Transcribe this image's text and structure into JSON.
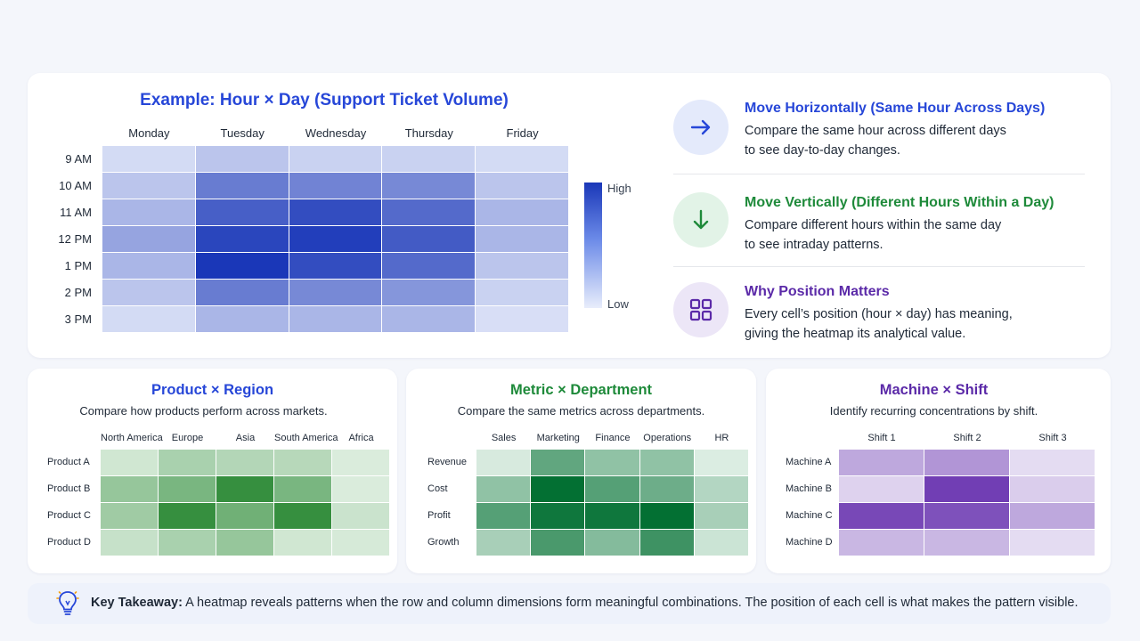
{
  "colors": {
    "blue_accent": "#2747d8",
    "green_accent": "#1e8a3a",
    "purple_accent": "#5b2aa8",
    "blue_high": "#1a37b8",
    "blue_low": "#e8edfb"
  },
  "main_panel": {
    "title": "Example: Hour × Day (Support Ticket Volume)",
    "legend_high": "High",
    "legend_low": "Low"
  },
  "info": [
    {
      "icon": "arrow-right-icon",
      "heading": "Move Horizontally (Same Hour Across Days)",
      "line1": "Compare the same hour across different days",
      "line2": "to see day-to-day changes.",
      "color": "#2747d8",
      "bg": "#e4eafb"
    },
    {
      "icon": "arrow-down-icon",
      "heading": "Move Vertically (Different Hours Within a Day)",
      "line1": "Compare different hours within the same day",
      "line2": "to see intraday patterns.",
      "color": "#1e8a3a",
      "bg": "#e2f3e7"
    },
    {
      "icon": "grid-icon",
      "heading": "Why Position Matters",
      "line1": "Every cell’s position (hour × day) has meaning,",
      "line2": "giving the heatmap its analytical value.",
      "color": "#5b2aa8",
      "bg": "#ece6f7"
    }
  ],
  "small_panels": [
    {
      "title": "Product × Region",
      "subtitle": "Compare how products perform across markets."
    },
    {
      "title": "Metric × Department",
      "subtitle": "Compare the same metrics across departments."
    },
    {
      "title": "Machine × Shift",
      "subtitle": "Identify recurring concentrations by shift."
    }
  ],
  "takeaway": {
    "label": "Key Takeaway:",
    "text": " A heatmap reveals patterns when the row and column dimensions form meaningful combinations. The position of each cell is what makes the pattern visible."
  },
  "chart_data": [
    {
      "type": "heatmap",
      "title": "Example: Hour × Day (Support Ticket Volume)",
      "columns": [
        "Monday",
        "Tuesday",
        "Wednesday",
        "Thursday",
        "Friday"
      ],
      "rows": [
        "9 AM",
        "10 AM",
        "11 AM",
        "12 PM",
        "1 PM",
        "2 PM",
        "3 PM"
      ],
      "values": [
        [
          0.1,
          0.22,
          0.15,
          0.15,
          0.1
        ],
        [
          0.22,
          0.62,
          0.58,
          0.55,
          0.22
        ],
        [
          0.3,
          0.78,
          0.88,
          0.72,
          0.3
        ],
        [
          0.4,
          0.92,
          0.96,
          0.8,
          0.3
        ],
        [
          0.3,
          1.0,
          0.88,
          0.72,
          0.22
        ],
        [
          0.22,
          0.62,
          0.55,
          0.48,
          0.15
        ],
        [
          0.1,
          0.3,
          0.3,
          0.3,
          0.08
        ]
      ],
      "legend": [
        "High",
        "Low"
      ],
      "color_scale": [
        "#e8edfb",
        "#1a37b8"
      ]
    },
    {
      "type": "heatmap",
      "title": "Product × Region",
      "columns": [
        "North America",
        "Europe",
        "Asia",
        "South America",
        "Africa"
      ],
      "rows": [
        "Product A",
        "Product B",
        "Product C",
        "Product D"
      ],
      "values": [
        [
          0.15,
          0.35,
          0.3,
          0.28,
          0.1
        ],
        [
          0.45,
          0.6,
          0.95,
          0.6,
          0.1
        ],
        [
          0.4,
          0.95,
          0.65,
          0.95,
          0.18
        ],
        [
          0.2,
          0.35,
          0.45,
          0.15,
          0.12
        ]
      ],
      "color_scale": [
        "#edf7ee",
        "#2c8a36"
      ]
    },
    {
      "type": "heatmap",
      "title": "Metric × Department",
      "columns": [
        "Sales",
        "Marketing",
        "Finance",
        "Operations",
        "HR"
      ],
      "rows": [
        "Revenue",
        "Cost",
        "Profit",
        "Growth"
      ],
      "values": [
        [
          0.1,
          0.6,
          0.4,
          0.4,
          0.08
        ],
        [
          0.4,
          1.0,
          0.65,
          0.55,
          0.25
        ],
        [
          0.65,
          0.95,
          0.95,
          1.0,
          0.3
        ],
        [
          0.3,
          0.7,
          0.45,
          0.75,
          0.15
        ]
      ],
      "color_scale": [
        "#eef8f1",
        "#037033"
      ]
    },
    {
      "type": "heatmap",
      "title": "Machine × Shift",
      "columns": [
        "Shift 1",
        "Shift 2",
        "Shift 3"
      ],
      "rows": [
        "Machine A",
        "Machine B",
        "Machine C",
        "Machine D"
      ],
      "values": [
        [
          0.38,
          0.48,
          0.1
        ],
        [
          0.15,
          0.95,
          0.18
        ],
        [
          0.9,
          0.85,
          0.38
        ],
        [
          0.3,
          0.3,
          0.1
        ]
      ],
      "color_scale": [
        "#f2eef9",
        "#6a35b0"
      ]
    }
  ]
}
